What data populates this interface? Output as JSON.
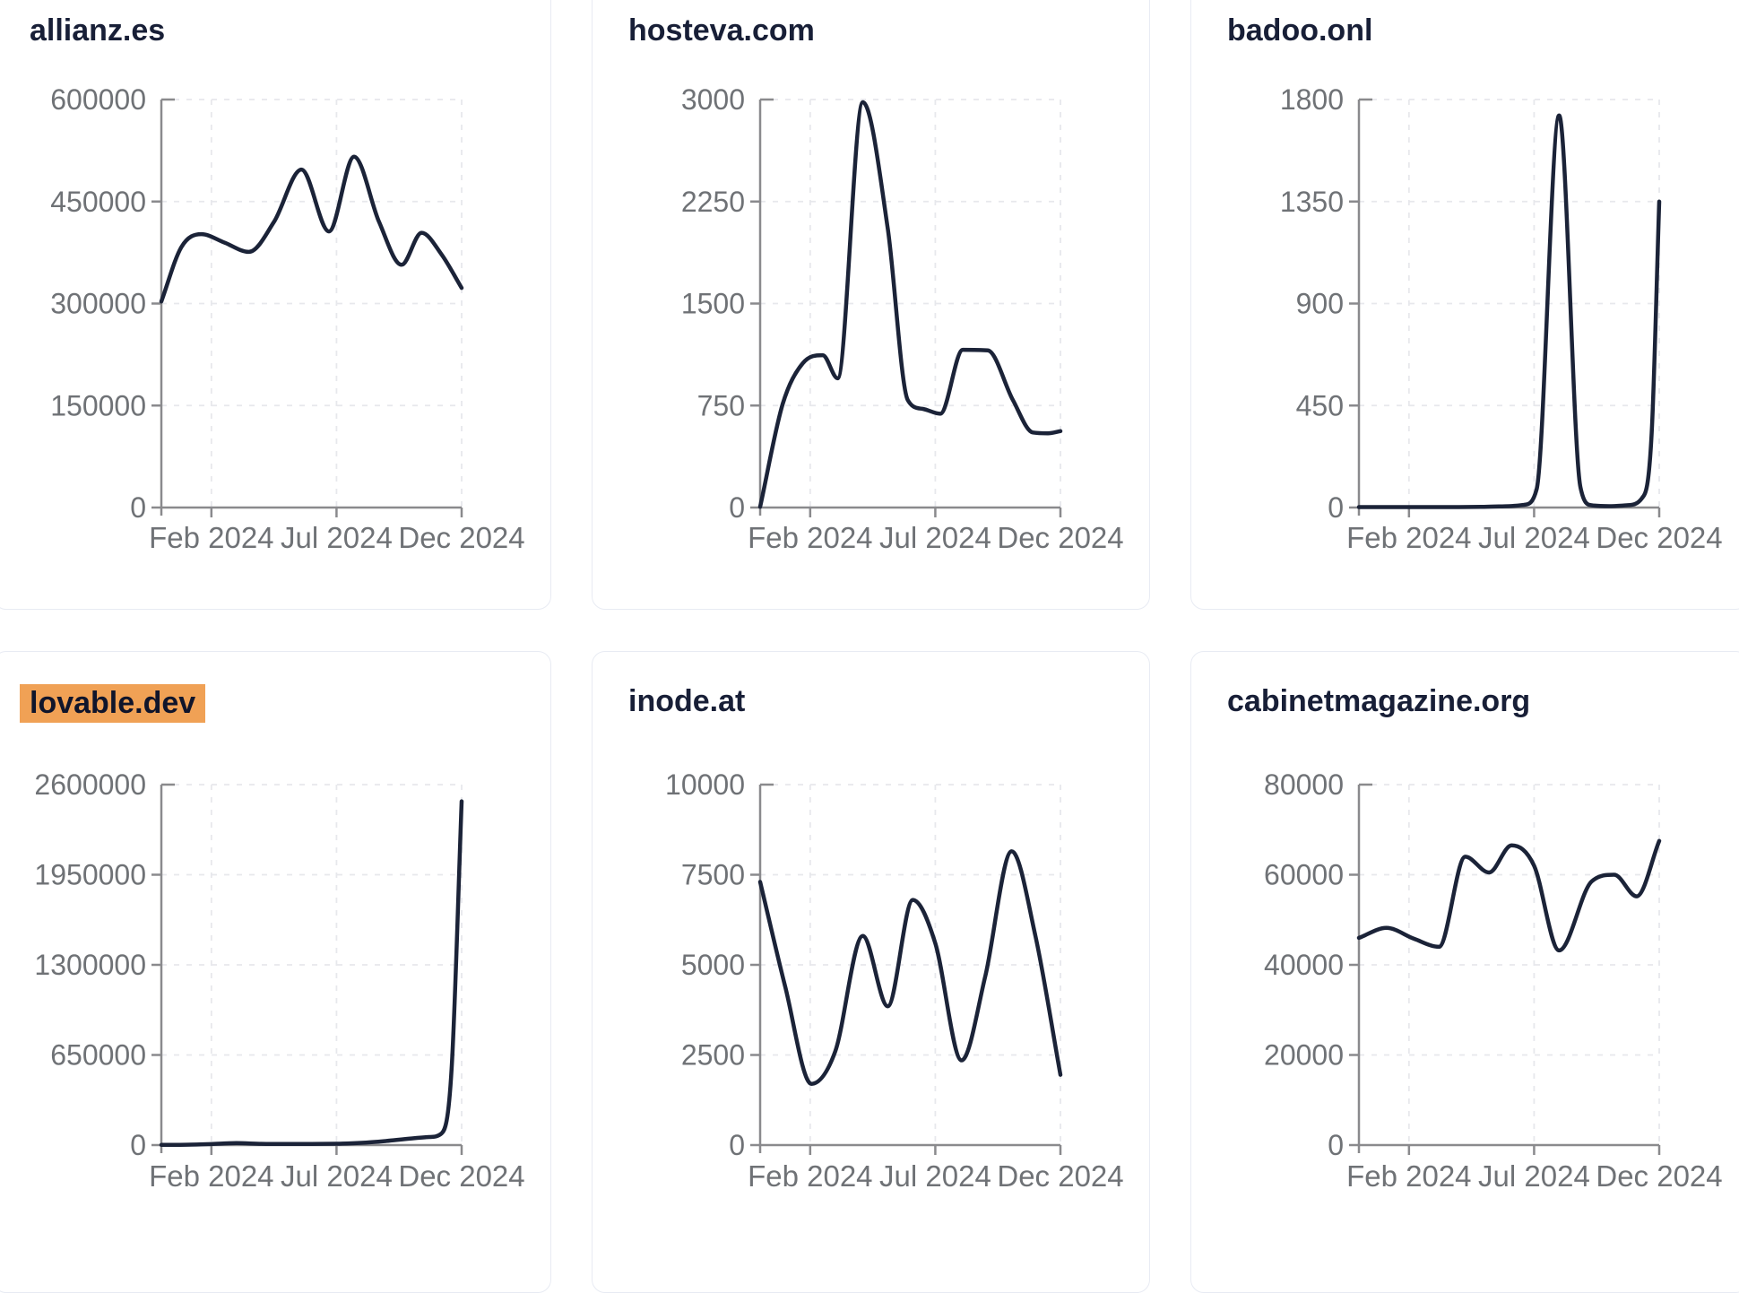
{
  "style": {
    "line_color": "#1b2338",
    "axis_color": "#8a8a8d",
    "grid_color": "#e7e8ec",
    "tick_text_color": "#6f7276",
    "title_color": "#181f37",
    "highlight_color": "#f0a155",
    "card_border_color": "#e8ebf3",
    "background": "#ffffff"
  },
  "chart_data": [
    {
      "type": "line",
      "title": "allianz.es",
      "title_highlighted": false,
      "ylim": [
        0,
        600000
      ],
      "yticks": [
        0,
        150000,
        300000,
        450000,
        600000
      ],
      "x_ticks": {
        "labels": [
          "Feb 2024",
          "Jul 2024",
          "Dec 2024"
        ],
        "positions_months": [
          2,
          7,
          12
        ]
      },
      "x_range_months": [
        0,
        12
      ],
      "grid": true,
      "x": [
        0,
        0.8,
        1.6,
        2.5,
        3.5,
        4.5,
        5.6,
        6.7,
        7.7,
        8.7,
        9.6,
        10.4,
        11.2,
        12
      ],
      "y": [
        303000,
        383000,
        402000,
        390000,
        376000,
        420000,
        497000,
        406000,
        516000,
        420000,
        357000,
        404000,
        372000,
        323000
      ]
    },
    {
      "type": "line",
      "title": "hosteva.com",
      "title_highlighted": false,
      "ylim": [
        0,
        3000
      ],
      "yticks": [
        0,
        750,
        1500,
        2250,
        3000
      ],
      "x_ticks": {
        "labels": [
          "Feb 2024",
          "Jul 2024",
          "Dec 2024"
        ],
        "positions_months": [
          2,
          7,
          12
        ]
      },
      "x_range_months": [
        0,
        12
      ],
      "grid": true,
      "x": [
        0,
        0.9,
        1.7,
        2.5,
        3.1,
        4.1,
        5.1,
        5.9,
        6.5,
        7.2,
        8.1,
        9.1,
        10.1,
        10.9,
        11.5,
        12
      ],
      "y": [
        5,
        760,
        1060,
        1120,
        950,
        2980,
        2050,
        790,
        725,
        690,
        1160,
        1155,
        790,
        552,
        546,
        562
      ]
    },
    {
      "type": "line",
      "title": "badoo.onl",
      "title_highlighted": false,
      "ylim": [
        0,
        1800
      ],
      "yticks": [
        0,
        450,
        900,
        1350,
        1800
      ],
      "x_ticks": {
        "labels": [
          "Feb 2024",
          "Jul 2024",
          "Dec 2024"
        ],
        "positions_months": [
          2,
          7,
          12
        ]
      },
      "x_range_months": [
        0,
        12
      ],
      "grid": true,
      "x": [
        0,
        1,
        2,
        3,
        4,
        5,
        6,
        6.6,
        7.1,
        8,
        8.85,
        9.3,
        10,
        10.7,
        11.3,
        11.7,
        12
      ],
      "y": [
        2,
        2,
        2,
        2,
        2,
        3,
        6,
        12,
        80,
        1730,
        90,
        10,
        6,
        10,
        40,
        330,
        1350
      ]
    },
    {
      "type": "line",
      "title": "lovable.dev",
      "title_highlighted": true,
      "ylim": [
        0,
        2600000
      ],
      "yticks": [
        0,
        650000,
        1300000,
        1950000,
        2600000
      ],
      "x_ticks": {
        "labels": [
          "Feb 2024",
          "Jul 2024",
          "Dec 2024"
        ],
        "positions_months": [
          2,
          7,
          12
        ]
      },
      "x_range_months": [
        0,
        12
      ],
      "grid": true,
      "x": [
        0,
        1,
        2,
        3,
        4,
        5,
        6,
        7,
        8,
        9,
        10,
        10.7,
        11.2,
        11.6,
        12
      ],
      "y": [
        1500,
        2500,
        7000,
        14000,
        9000,
        8000,
        8500,
        10000,
        16000,
        30000,
        48000,
        58000,
        85000,
        550000,
        2480000
      ]
    },
    {
      "type": "line",
      "title": "inode.at",
      "title_highlighted": false,
      "ylim": [
        0,
        10000
      ],
      "yticks": [
        0,
        2500,
        5000,
        7500,
        10000
      ],
      "x_ticks": {
        "labels": [
          "Feb 2024",
          "Jul 2024",
          "Dec 2024"
        ],
        "positions_months": [
          2,
          7,
          12
        ]
      },
      "x_range_months": [
        0,
        12
      ],
      "grid": true,
      "x": [
        0,
        1,
        2.05,
        3,
        4.1,
        5.1,
        6.1,
        7,
        8.05,
        9,
        10.05,
        11,
        12
      ],
      "y": [
        7300,
        4400,
        1700,
        2600,
        5800,
        3850,
        6800,
        5600,
        2350,
        4700,
        8150,
        5800,
        1950
      ]
    },
    {
      "type": "line",
      "title": "cabinetmagazine.org",
      "title_highlighted": false,
      "ylim": [
        0,
        80000
      ],
      "yticks": [
        0,
        20000,
        40000,
        60000,
        80000
      ],
      "x_ticks": {
        "labels": [
          "Feb 2024",
          "Jul 2024",
          "Dec 2024"
        ],
        "positions_months": [
          2,
          7,
          12
        ]
      },
      "x_range_months": [
        0,
        12
      ],
      "grid": true,
      "x": [
        0,
        1.1,
        2.2,
        3.2,
        4.25,
        5.2,
        6.1,
        7,
        8,
        9.3,
        10.2,
        11.1,
        12
      ],
      "y": [
        46000,
        48200,
        45800,
        44000,
        64000,
        60500,
        66500,
        62000,
        43200,
        58500,
        60000,
        55200,
        67500
      ]
    }
  ]
}
